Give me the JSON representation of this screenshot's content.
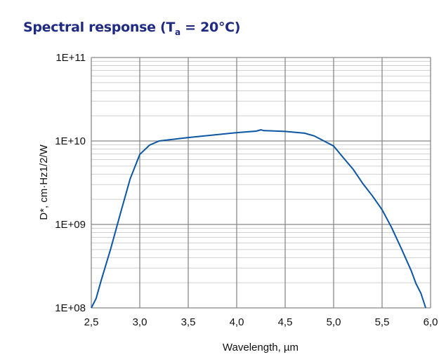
{
  "title": {
    "main": "Spectral response (T",
    "sub": "a",
    "rest": " = 20°C)"
  },
  "chart_data": {
    "type": "line",
    "title": "Spectral response (Ta = 20°C)",
    "xlabel": "Wavelength, µm",
    "ylabel": "D*, cm·Hz1/2/W",
    "xlim": [
      2.5,
      6.0
    ],
    "ylim": [
      100000000.0,
      100000000000.0
    ],
    "yscale": "log",
    "grid": true,
    "x_ticks": [
      "2,5",
      "3,0",
      "3,5",
      "4,0",
      "4,5",
      "5,0",
      "5,5",
      "6,0"
    ],
    "y_ticks": [
      "1E+08",
      "1E+09",
      "1E+10",
      "1E+11"
    ],
    "series": [
      {
        "name": "D*",
        "color": "#0b56a4",
        "x": [
          2.5,
          2.55,
          2.6,
          2.7,
          2.8,
          2.9,
          3.0,
          3.1,
          3.2,
          3.5,
          4.0,
          4.2,
          4.25,
          4.28,
          4.3,
          4.5,
          4.7,
          4.8,
          4.9,
          5.0,
          5.1,
          5.2,
          5.3,
          5.4,
          5.5,
          5.6,
          5.7,
          5.8,
          5.85,
          5.9,
          5.95
        ],
        "y": [
          100000000.0,
          130000000.0,
          210000000.0,
          510000000.0,
          1350000000.0,
          3500000000.0,
          6900000000.0,
          8900000000.0,
          10000000000.0,
          11000000000.0,
          12600000000.0,
          13100000000.0,
          13600000000.0,
          13300000000.0,
          13300000000.0,
          13000000000.0,
          12400000000.0,
          11500000000.0,
          10000000000.0,
          8700000000.0,
          6300000000.0,
          4600000000.0,
          3100000000.0,
          2200000000.0,
          1500000000.0,
          910000000.0,
          510000000.0,
          280000000.0,
          195000000.0,
          150000000.0,
          100000000.0
        ]
      }
    ]
  }
}
